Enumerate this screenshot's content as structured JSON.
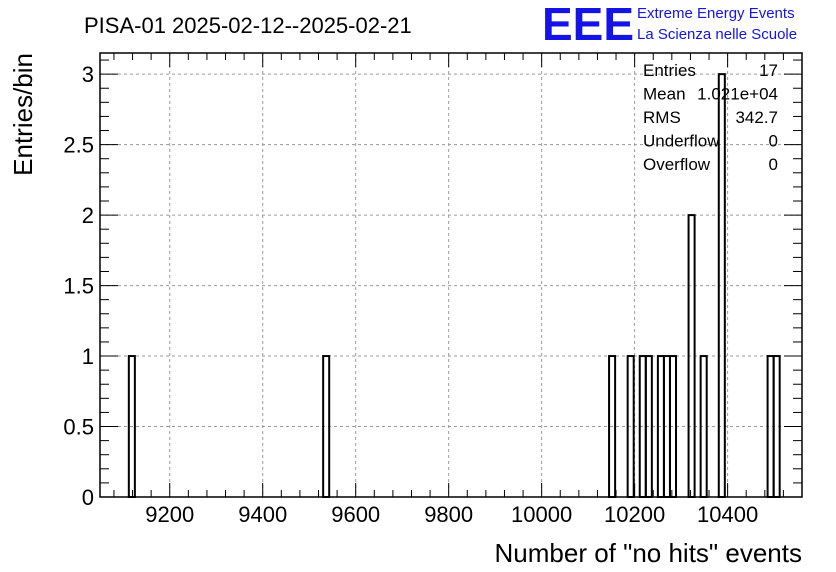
{
  "chart_data": {
    "type": "bar",
    "title": "PISA-01 2025-02-12--2025-02-21",
    "xlabel": "Number of \"no hits\" events",
    "ylabel": "Entries/bin",
    "xlim": [
      9050,
      10560
    ],
    "ylim": [
      0,
      3.15
    ],
    "x_ticks": [
      9200,
      9400,
      9600,
      9800,
      10000,
      10200,
      10400
    ],
    "y_ticks": [
      0,
      0.5,
      1,
      1.5,
      2,
      2.5,
      3
    ],
    "y_tick_labels": [
      "0",
      "0.5",
      "1",
      "1.5",
      "2",
      "2.5",
      "3"
    ],
    "grid": true,
    "bins": [
      {
        "x0": 9112,
        "x1": 9125,
        "value": 1
      },
      {
        "x0": 9530,
        "x1": 9543,
        "value": 1
      },
      {
        "x0": 10145,
        "x1": 10158,
        "value": 1
      },
      {
        "x0": 10185,
        "x1": 10198,
        "value": 1
      },
      {
        "x0": 10211,
        "x1": 10224,
        "value": 1
      },
      {
        "x0": 10224,
        "x1": 10237,
        "value": 1
      },
      {
        "x0": 10250,
        "x1": 10263,
        "value": 1
      },
      {
        "x0": 10263,
        "x1": 10276,
        "value": 1
      },
      {
        "x0": 10276,
        "x1": 10289,
        "value": 1
      },
      {
        "x0": 10316,
        "x1": 10329,
        "value": 2
      },
      {
        "x0": 10342,
        "x1": 10355,
        "value": 1
      },
      {
        "x0": 10381,
        "x1": 10394,
        "value": 3
      },
      {
        "x0": 10486,
        "x1": 10499,
        "value": 1
      },
      {
        "x0": 10499,
        "x1": 10512,
        "value": 1
      }
    ],
    "stats": [
      {
        "label": "Entries",
        "value": "17"
      },
      {
        "label": "Mean",
        "value": "1.021e+04"
      },
      {
        "label": "RMS",
        "value": "342.7"
      },
      {
        "label": "Underflow",
        "value": "0"
      },
      {
        "label": "Overflow",
        "value": "0"
      }
    ]
  },
  "logo": {
    "text": "EEE",
    "line1": "Extreme Energy Events",
    "line2": "La Scienza nelle Scuole"
  },
  "colors": {
    "logo": "#1414e6",
    "grid": "#9a9a9a",
    "line": "#000000"
  }
}
